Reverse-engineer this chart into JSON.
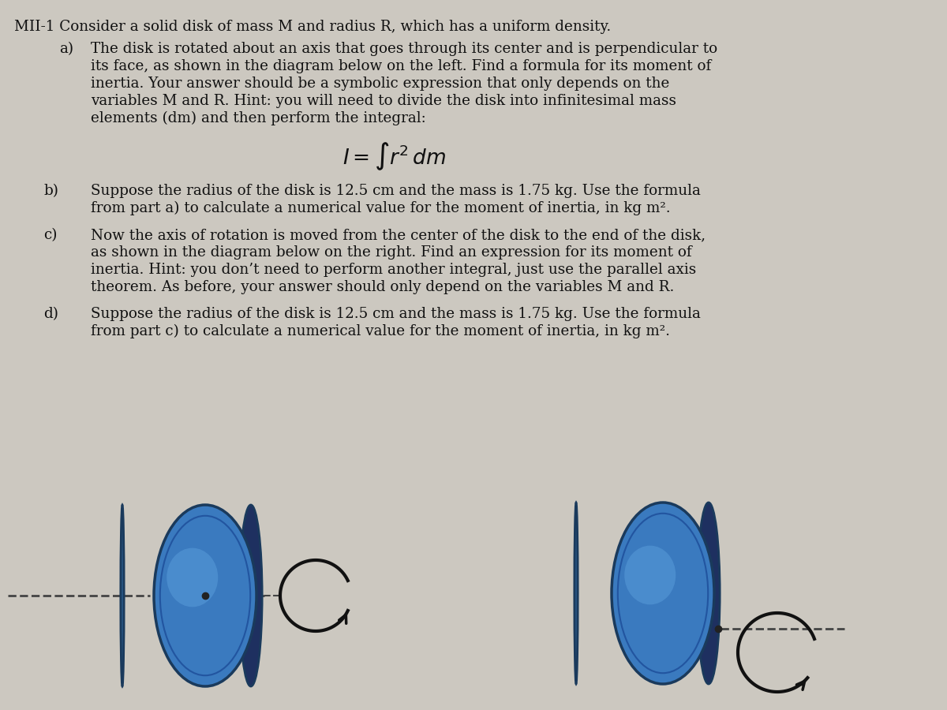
{
  "bg_color": "#ccc8c0",
  "text_color": "#111111",
  "disk_face": "#3a7abf",
  "disk_edge": "#1a3a5c",
  "disk_side": "#1e3060",
  "disk_highlight": "#6aaee8",
  "axis_color": "#444444",
  "arrow_color": "#111111",
  "font_family": "DejaVu Serif",
  "fs": 13.2,
  "fs_integral": 19,
  "title": "MII-1 Consider a solid disk of mass M and radius R, which has a uniform density.",
  "a_label": "a)",
  "a_lines": [
    "The disk is rotated about an axis that goes through its center and is perpendicular to",
    "its face, as shown in the diagram below on the left. Find a formula for its moment of",
    "inertia. Your answer should be a symbolic expression that only depends on the",
    "variables M and R. Hint: you will need to divide the disk into infinitesimal mass",
    "elements (dm) and then perform the integral:"
  ],
  "b_label": "b)",
  "b_lines": [
    "Suppose the radius of the disk is 12.5 cm and the mass is 1.75 kg. Use the formula",
    "from part a) to calculate a numerical value for the moment of inertia, in kg m²."
  ],
  "c_label": "c)",
  "c_lines": [
    "Now the axis of rotation is moved from the center of the disk to the end of the disk,",
    "as shown in the diagram below on the right. Find an expression for its moment of",
    "inertia. Hint: you don’t need to perform another integral, just use the parallel axis",
    "theorem. As before, your answer should only depend on the variables M and R."
  ],
  "d_label": "d)",
  "d_lines": [
    "Suppose the radius of the disk is 12.5 cm and the mass is 1.75 kg. Use the formula",
    "from part c) to calculate a numerical value for the moment of inertia, in kg m²."
  ]
}
